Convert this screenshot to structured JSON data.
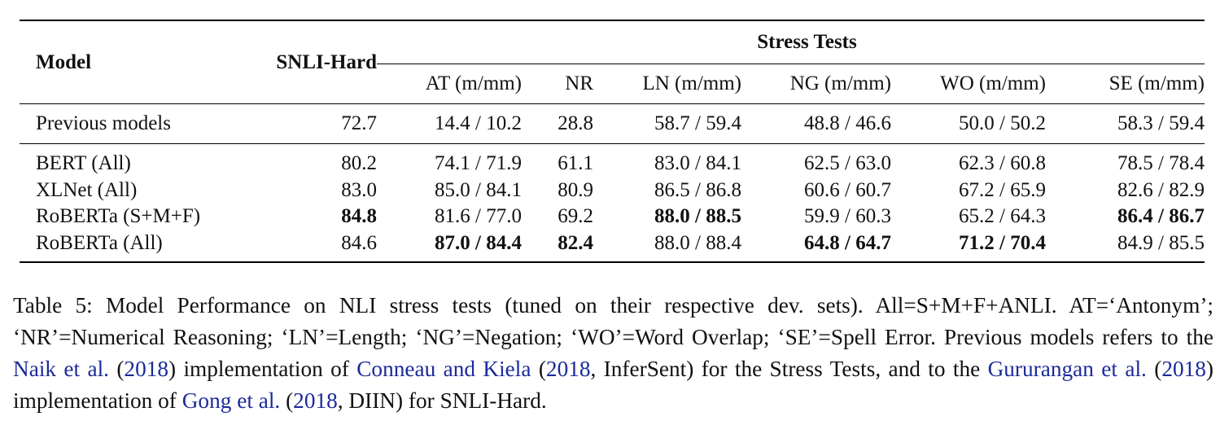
{
  "table": {
    "header": {
      "model": "Model",
      "snli_hard": "SNLI-Hard",
      "stress_tests": "Stress Tests",
      "stress_columns": [
        "AT (m/mm)",
        "NR",
        "LN (m/mm)",
        "NG (m/mm)",
        "WO (m/mm)",
        "SE (m/mm)"
      ]
    },
    "previous": {
      "model": "Previous models",
      "cells": [
        "72.7",
        "14.4 / 10.2",
        "28.8",
        "58.7 / 59.4",
        "48.8 / 46.6",
        "50.0 / 50.2",
        "58.3 / 59.4"
      ]
    },
    "rows": [
      {
        "model": "BERT (All)",
        "cells": [
          "80.2",
          "74.1 / 71.9",
          "61.1",
          "83.0 / 84.1",
          "62.5 / 63.0",
          "62.3 / 60.8",
          "78.5 / 78.4"
        ]
      },
      {
        "model": "XLNet (All)",
        "cells": [
          "83.0",
          "85.0 / 84.1",
          "80.9",
          "86.5 / 86.8",
          "60.6 / 60.7",
          "67.2 / 65.9",
          "82.6 / 82.9"
        ]
      },
      {
        "model": "RoBERTa (S+M+F)",
        "cells": [
          "84.8",
          "81.6 / 77.0",
          "69.2",
          "88.0 / 88.5",
          "59.9 / 60.3",
          "65.2 / 64.3",
          "86.4 / 86.7"
        ]
      },
      {
        "model": "RoBERTa (All)",
        "cells": [
          "84.6",
          "87.0 / 84.4",
          "82.4",
          "88.0 / 88.4",
          "64.8 / 64.7",
          "71.2 / 70.4",
          "84.9 / 85.5"
        ]
      }
    ]
  },
  "caption": {
    "p1": "Table 5:  Model Performance on NLI stress tests (tuned on their respective dev.  sets).  All=S+M+F+ANLI. AT=‘Antonym’; ‘NR’=Numerical Reasoning; ‘LN’=Length; ‘NG’=Negation; ‘WO’=Word Overlap; ‘SE’=Spell Error. Previous models refers to the ",
    "c1_name": "Naik et al.",
    "c1_open": " (",
    "c1_year": "2018",
    "c1_close": ") implementation of ",
    "c2_name": "Conneau and Kiela",
    "c2_open": " (",
    "c2_year": "2018",
    "c2_close": ", InferSent) for the Stress Tests, and to the ",
    "c3_name": "Gururangan et al.",
    "c3_open": " (",
    "c3_year": "2018",
    "c3_close": ") implementation of ",
    "c4_name": "Gong et al.",
    "c4_open": " (",
    "c4_year": "2018",
    "c4_close": ", DIIN) for SNLI-Hard."
  }
}
